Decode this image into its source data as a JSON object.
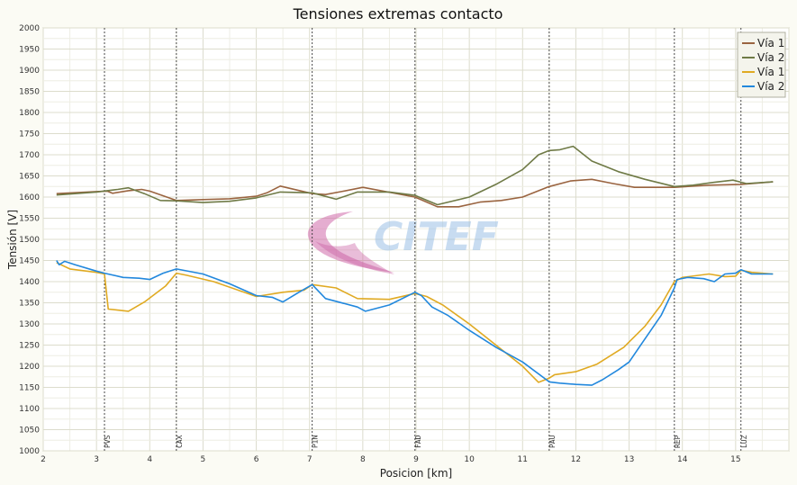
{
  "chart_data": {
    "type": "line",
    "title": "Tensiones extremas contacto",
    "xlabel": "Posicion [km]",
    "ylabel": "Tensión [V]",
    "xlim": [
      2,
      16
    ],
    "ylim": [
      1000,
      2000
    ],
    "x_ticks": [
      2,
      3,
      4,
      5,
      6,
      7,
      8,
      9,
      10,
      11,
      12,
      13,
      14,
      15
    ],
    "y_ticks": [
      1000,
      1050,
      1100,
      1150,
      1200,
      1250,
      1300,
      1350,
      1400,
      1450,
      1500,
      1550,
      1600,
      1650,
      1700,
      1750,
      1800,
      1850,
      1900,
      1950,
      2000
    ],
    "grid": true,
    "legend_position": "top-right",
    "stations": [
      {
        "name": "PVS",
        "x": 3.15
      },
      {
        "name": "CAX",
        "x": 4.5
      },
      {
        "name": "PIN",
        "x": 7.05
      },
      {
        "name": "FAD",
        "x": 8.98
      },
      {
        "name": "PAU",
        "x": 11.5
      },
      {
        "name": "REP",
        "x": 13.85
      },
      {
        "name": "LUZ",
        "x": 15.1
      }
    ],
    "series": [
      {
        "name": "Vía 1",
        "color": "#9a6440",
        "points": [
          [
            2.25,
            1608
          ],
          [
            3.0,
            1613
          ],
          [
            3.2,
            1614
          ],
          [
            3.3,
            1609
          ],
          [
            3.6,
            1615
          ],
          [
            3.85,
            1618
          ],
          [
            4.0,
            1614
          ],
          [
            4.5,
            1592
          ],
          [
            5.0,
            1594
          ],
          [
            5.5,
            1596
          ],
          [
            6.0,
            1602
          ],
          [
            6.2,
            1610
          ],
          [
            6.45,
            1626
          ],
          [
            7.05,
            1608
          ],
          [
            7.3,
            1606
          ],
          [
            7.6,
            1613
          ],
          [
            8.0,
            1623
          ],
          [
            8.98,
            1600
          ],
          [
            9.4,
            1577
          ],
          [
            9.8,
            1577
          ],
          [
            10.2,
            1588
          ],
          [
            10.6,
            1592
          ],
          [
            11.0,
            1600
          ],
          [
            11.5,
            1625
          ],
          [
            11.9,
            1638
          ],
          [
            12.3,
            1642
          ],
          [
            12.7,
            1632
          ],
          [
            13.1,
            1623
          ],
          [
            13.85,
            1623
          ],
          [
            14.5,
            1628
          ],
          [
            15.1,
            1630
          ],
          [
            15.7,
            1636
          ]
        ]
      },
      {
        "name": "Vía 2",
        "color": "#6f7a46",
        "points": [
          [
            2.25,
            1605
          ],
          [
            3.0,
            1612
          ],
          [
            3.4,
            1618
          ],
          [
            3.6,
            1622
          ],
          [
            3.9,
            1608
          ],
          [
            4.2,
            1592
          ],
          [
            4.5,
            1591
          ],
          [
            5.0,
            1587
          ],
          [
            5.5,
            1590
          ],
          [
            6.0,
            1598
          ],
          [
            6.45,
            1612
          ],
          [
            7.05,
            1610
          ],
          [
            7.5,
            1595
          ],
          [
            7.9,
            1612
          ],
          [
            8.5,
            1612
          ],
          [
            8.98,
            1604
          ],
          [
            9.4,
            1582
          ],
          [
            10.0,
            1600
          ],
          [
            10.5,
            1630
          ],
          [
            11.0,
            1665
          ],
          [
            11.3,
            1700
          ],
          [
            11.5,
            1710
          ],
          [
            11.7,
            1712
          ],
          [
            11.95,
            1720
          ],
          [
            12.3,
            1685
          ],
          [
            12.8,
            1660
          ],
          [
            13.3,
            1642
          ],
          [
            13.85,
            1625
          ],
          [
            14.2,
            1628
          ],
          [
            14.6,
            1635
          ],
          [
            14.95,
            1640
          ],
          [
            15.2,
            1632
          ],
          [
            15.7,
            1636
          ]
        ]
      },
      {
        "name": "Vía 1",
        "color": "#e0aa22",
        "points": [
          [
            2.25,
            1445
          ],
          [
            2.5,
            1430
          ],
          [
            3.0,
            1422
          ],
          [
            3.15,
            1418
          ],
          [
            3.22,
            1335
          ],
          [
            3.6,
            1330
          ],
          [
            3.9,
            1352
          ],
          [
            4.3,
            1390
          ],
          [
            4.5,
            1420
          ],
          [
            4.7,
            1415
          ],
          [
            5.2,
            1400
          ],
          [
            6.0,
            1365
          ],
          [
            6.5,
            1375
          ],
          [
            6.9,
            1380
          ],
          [
            7.05,
            1393
          ],
          [
            7.5,
            1385
          ],
          [
            7.9,
            1360
          ],
          [
            8.5,
            1358
          ],
          [
            8.98,
            1372
          ],
          [
            9.2,
            1365
          ],
          [
            9.5,
            1345
          ],
          [
            10.0,
            1300
          ],
          [
            10.5,
            1250
          ],
          [
            11.0,
            1200
          ],
          [
            11.3,
            1162
          ],
          [
            11.5,
            1172
          ],
          [
            11.6,
            1180
          ],
          [
            12.0,
            1187
          ],
          [
            12.4,
            1205
          ],
          [
            12.9,
            1245
          ],
          [
            13.3,
            1295
          ],
          [
            13.6,
            1345
          ],
          [
            13.85,
            1400
          ],
          [
            14.0,
            1410
          ],
          [
            14.5,
            1418
          ],
          [
            14.8,
            1412
          ],
          [
            15.0,
            1413
          ],
          [
            15.1,
            1427
          ],
          [
            15.3,
            1422
          ],
          [
            15.7,
            1418
          ]
        ]
      },
      {
        "name": "Vía 2",
        "color": "#2288dd",
        "points": [
          [
            2.25,
            1450
          ],
          [
            2.3,
            1440
          ],
          [
            2.4,
            1448
          ],
          [
            2.6,
            1440
          ],
          [
            3.0,
            1425
          ],
          [
            3.15,
            1420
          ],
          [
            3.5,
            1410
          ],
          [
            3.8,
            1408
          ],
          [
            4.0,
            1405
          ],
          [
            4.25,
            1420
          ],
          [
            4.5,
            1430
          ],
          [
            5.0,
            1418
          ],
          [
            5.5,
            1395
          ],
          [
            6.0,
            1367
          ],
          [
            6.3,
            1363
          ],
          [
            6.5,
            1352
          ],
          [
            6.8,
            1375
          ],
          [
            7.05,
            1393
          ],
          [
            7.3,
            1360
          ],
          [
            7.9,
            1340
          ],
          [
            8.05,
            1330
          ],
          [
            8.5,
            1345
          ],
          [
            8.98,
            1375
          ],
          [
            9.1,
            1367
          ],
          [
            9.3,
            1340
          ],
          [
            9.6,
            1320
          ],
          [
            10.0,
            1285
          ],
          [
            10.5,
            1245
          ],
          [
            11.0,
            1210
          ],
          [
            11.5,
            1163
          ],
          [
            11.7,
            1160
          ],
          [
            12.0,
            1157
          ],
          [
            12.3,
            1155
          ],
          [
            12.5,
            1168
          ],
          [
            12.8,
            1192
          ],
          [
            13.0,
            1210
          ],
          [
            13.3,
            1265
          ],
          [
            13.6,
            1320
          ],
          [
            13.85,
            1385
          ],
          [
            13.9,
            1405
          ],
          [
            14.1,
            1410
          ],
          [
            14.4,
            1407
          ],
          [
            14.6,
            1400
          ],
          [
            14.8,
            1418
          ],
          [
            15.0,
            1420
          ],
          [
            15.1,
            1428
          ],
          [
            15.3,
            1418
          ],
          [
            15.7,
            1418
          ]
        ]
      }
    ]
  }
}
